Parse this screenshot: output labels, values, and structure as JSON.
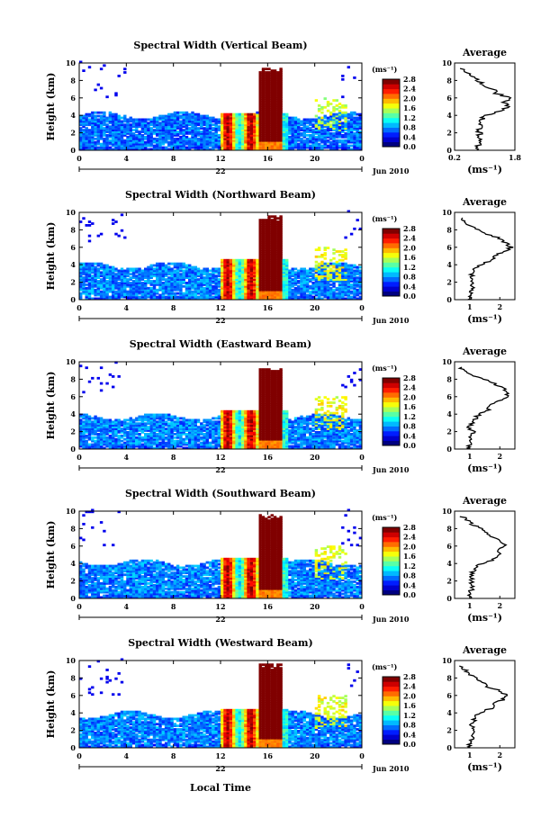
{
  "x_axis_label": "Local Time",
  "chart_data": [
    {
      "type": "heatmap",
      "title": "Spectral Width (Vertical Beam)",
      "ylabel": "Height (km)",
      "xlim": [
        0,
        24
      ],
      "ylim": [
        0,
        10
      ],
      "x_ticks": [
        "0",
        "4",
        "8",
        "12",
        "16",
        "20",
        "0"
      ],
      "y_ticks": [
        "0",
        "2",
        "4",
        "6",
        "8",
        "10"
      ],
      "date_day": "22",
      "date_month": "Jun 2010",
      "colorbar": {
        "unit": "(ms⁻¹)",
        "ticks": [
          "0.0",
          "0.4",
          "0.8",
          "1.2",
          "1.6",
          "2.0",
          "2.4",
          "2.8"
        ]
      },
      "features": [
        {
          "x": [
            0,
            24
          ],
          "y": [
            0,
            3.9
          ],
          "value": 0.4
        },
        {
          "x": [
            12,
            17.5
          ],
          "y": [
            0,
            4.2
          ],
          "value": 1.6
        },
        {
          "x": [
            15.2,
            17
          ],
          "y": [
            0,
            9.5
          ],
          "value": 2.8
        },
        {
          "x": [
            20,
            22.5
          ],
          "y": [
            2,
            6
          ],
          "value": 1.4
        }
      ],
      "average": {
        "title": "Average",
        "xlabel": "(ms⁻¹)",
        "xlim": [
          0.2,
          1.8
        ],
        "x_ticks": [
          "0.2",
          "1.8"
        ],
        "y_ticks": [
          "0",
          "2",
          "4",
          "6",
          "8",
          "10"
        ],
        "heights": [
          0,
          0.5,
          1,
          1.5,
          2,
          2.5,
          3,
          3.5,
          4,
          4.5,
          5,
          5.5,
          6,
          6.5,
          7,
          7.5,
          8,
          8.5,
          9,
          9.5
        ],
        "values": [
          0.8,
          0.82,
          0.85,
          0.84,
          0.86,
          0.85,
          0.87,
          0.9,
          1.0,
          1.4,
          1.6,
          1.5,
          1.7,
          1.3,
          1.2,
          1.0,
          0.8,
          0.6,
          0.5,
          0.4
        ]
      }
    },
    {
      "type": "heatmap",
      "title": "Spectral Width (Northward Beam)",
      "ylabel": "Height (km)",
      "xlim": [
        0,
        24
      ],
      "ylim": [
        0,
        10
      ],
      "x_ticks": [
        "0",
        "4",
        "8",
        "12",
        "16",
        "20",
        "0"
      ],
      "y_ticks": [
        "0",
        "2",
        "4",
        "6",
        "8",
        "10"
      ],
      "date_day": "22",
      "date_month": "Jun 2010",
      "colorbar": {
        "unit": "(ms⁻¹)",
        "ticks": [
          "0.0",
          "0.4",
          "0.8",
          "1.2",
          "1.6",
          "2.0",
          "2.4",
          "2.8"
        ]
      },
      "features": [
        {
          "x": [
            0,
            24
          ],
          "y": [
            0,
            3.8
          ],
          "value": 0.45
        },
        {
          "x": [
            12,
            17.5
          ],
          "y": [
            0,
            4.5
          ],
          "value": 1.6
        },
        {
          "x": [
            15.2,
            17
          ],
          "y": [
            0,
            9.6
          ],
          "value": 2.8
        },
        {
          "x": [
            20,
            22.5
          ],
          "y": [
            2,
            6
          ],
          "value": 1.5
        }
      ],
      "average": {
        "title": "Average",
        "xlabel": "(ms⁻¹)",
        "xlim": [
          0.5,
          2.5
        ],
        "x_ticks": [
          "1",
          "2"
        ],
        "y_ticks": [
          "0",
          "2",
          "4",
          "6",
          "8",
          "10"
        ],
        "heights": [
          0,
          0.5,
          1,
          1.5,
          2,
          2.5,
          3,
          3.5,
          4,
          4.5,
          5,
          5.5,
          6,
          6.5,
          7,
          7.5,
          8,
          8.5,
          9,
          9.5
        ],
        "values": [
          1.0,
          1.0,
          1.05,
          1.1,
          1.1,
          1.05,
          1.1,
          1.2,
          1.4,
          1.7,
          1.8,
          2.1,
          2.4,
          2.2,
          2.0,
          1.6,
          1.3,
          1.0,
          0.8,
          0.7
        ]
      }
    },
    {
      "type": "heatmap",
      "title": "Spectral Width (Eastward Beam)",
      "ylabel": "Height (km)",
      "xlim": [
        0,
        24
      ],
      "ylim": [
        0,
        10
      ],
      "x_ticks": [
        "0",
        "4",
        "8",
        "12",
        "16",
        "20",
        "0"
      ],
      "y_ticks": [
        "0",
        "2",
        "4",
        "6",
        "8",
        "10"
      ],
      "date_day": "22",
      "date_month": "Jun 2010",
      "colorbar": {
        "unit": "(ms⁻¹)",
        "ticks": [
          "0.0",
          "0.4",
          "0.8",
          "1.2",
          "1.6",
          "2.0",
          "2.4",
          "2.8"
        ]
      },
      "features": [
        {
          "x": [
            0,
            24
          ],
          "y": [
            0,
            3.6
          ],
          "value": 0.45
        },
        {
          "x": [
            12,
            17.5
          ],
          "y": [
            0,
            4.4
          ],
          "value": 1.6
        },
        {
          "x": [
            15.2,
            17
          ],
          "y": [
            0,
            9.4
          ],
          "value": 2.8
        },
        {
          "x": [
            20,
            22.5
          ],
          "y": [
            2,
            6
          ],
          "value": 1.5
        }
      ],
      "average": {
        "title": "Average",
        "xlabel": "(ms⁻¹)",
        "xlim": [
          0.5,
          2.5
        ],
        "x_ticks": [
          "1",
          "2"
        ],
        "y_ticks": [
          "0",
          "2",
          "4",
          "6",
          "8",
          "10"
        ],
        "heights": [
          0,
          0.5,
          1,
          1.5,
          2,
          2.5,
          3,
          3.5,
          4,
          4.5,
          5,
          5.5,
          6,
          6.5,
          7,
          7.5,
          8,
          8.5,
          9,
          9.5
        ],
        "values": [
          0.95,
          1.0,
          1.0,
          1.05,
          1.1,
          1.0,
          1.1,
          1.2,
          1.3,
          1.6,
          1.7,
          2.0,
          2.3,
          2.2,
          2.1,
          1.8,
          1.5,
          1.1,
          0.8,
          0.7
        ]
      }
    },
    {
      "type": "heatmap",
      "title": "Spectral Width (Southward Beam)",
      "ylabel": "Height (km)",
      "xlim": [
        0,
        24
      ],
      "ylim": [
        0,
        10
      ],
      "x_ticks": [
        "0",
        "4",
        "8",
        "12",
        "16",
        "20",
        "0"
      ],
      "y_ticks": [
        "0",
        "2",
        "4",
        "6",
        "8",
        "10"
      ],
      "date_day": "22",
      "date_month": "Jun 2010",
      "colorbar": {
        "unit": "(ms⁻¹)",
        "ticks": [
          "0.0",
          "0.4",
          "0.8",
          "1.2",
          "1.6",
          "2.0",
          "2.4",
          "2.8"
        ]
      },
      "features": [
        {
          "x": [
            0,
            24
          ],
          "y": [
            0,
            4.0
          ],
          "value": 0.45
        },
        {
          "x": [
            12,
            17.5
          ],
          "y": [
            0,
            4.5
          ],
          "value": 1.6
        },
        {
          "x": [
            15.2,
            17
          ],
          "y": [
            0,
            9.6
          ],
          "value": 2.8
        },
        {
          "x": [
            20,
            22.5
          ],
          "y": [
            2,
            6
          ],
          "value": 1.5
        }
      ],
      "average": {
        "title": "Average",
        "xlabel": "(ms⁻¹)",
        "xlim": [
          0.5,
          2.5
        ],
        "x_ticks": [
          "1",
          "2"
        ],
        "y_ticks": [
          "0",
          "2",
          "4",
          "6",
          "8",
          "10"
        ],
        "heights": [
          0,
          0.5,
          1,
          1.5,
          2,
          2.5,
          3,
          3.5,
          4,
          4.5,
          5,
          5.5,
          6,
          6.5,
          7,
          7.5,
          8,
          8.5,
          9,
          9.5
        ],
        "values": [
          1.0,
          1.0,
          1.05,
          1.05,
          1.1,
          1.0,
          1.1,
          1.2,
          1.4,
          1.8,
          2.0,
          1.9,
          2.2,
          2.0,
          1.8,
          1.6,
          1.4,
          1.1,
          0.9,
          0.7
        ]
      }
    },
    {
      "type": "heatmap",
      "title": "Spectral Width (Westward Beam)",
      "ylabel": "Height (km)",
      "xlim": [
        0,
        24
      ],
      "ylim": [
        0,
        10
      ],
      "x_ticks": [
        "0",
        "4",
        "8",
        "12",
        "16",
        "20",
        "0"
      ],
      "y_ticks": [
        "0",
        "2",
        "4",
        "6",
        "8",
        "10"
      ],
      "date_day": "22",
      "date_month": "Jun 2010",
      "colorbar": {
        "unit": "(ms⁻¹)",
        "ticks": [
          "0.0",
          "0.4",
          "0.8",
          "1.2",
          "1.6",
          "2.0",
          "2.4",
          "2.8"
        ]
      },
      "features": [
        {
          "x": [
            0,
            24
          ],
          "y": [
            0,
            3.7
          ],
          "value": 0.45
        },
        {
          "x": [
            12,
            17.5
          ],
          "y": [
            0,
            4.3
          ],
          "value": 1.6
        },
        {
          "x": [
            15.2,
            17
          ],
          "y": [
            0,
            9.7
          ],
          "value": 2.8
        },
        {
          "x": [
            20,
            22.5
          ],
          "y": [
            2,
            6
          ],
          "value": 1.5
        }
      ],
      "average": {
        "title": "Average",
        "xlabel": "(ms⁻¹)",
        "xlim": [
          0.5,
          2.5
        ],
        "x_ticks": [
          "1",
          "2"
        ],
        "y_ticks": [
          "0",
          "2",
          "4",
          "6",
          "8",
          "10"
        ],
        "heights": [
          0,
          0.5,
          1,
          1.5,
          2,
          2.5,
          3,
          3.5,
          4,
          4.5,
          5,
          5.5,
          6,
          6.5,
          7,
          7.5,
          8,
          8.5,
          9,
          9.5
        ],
        "values": [
          1.0,
          1.0,
          1.05,
          1.1,
          1.1,
          1.05,
          1.1,
          1.2,
          1.3,
          1.7,
          1.8,
          2.1,
          2.2,
          2.0,
          1.6,
          1.4,
          1.2,
          1.0,
          0.8,
          0.7
        ]
      }
    }
  ]
}
